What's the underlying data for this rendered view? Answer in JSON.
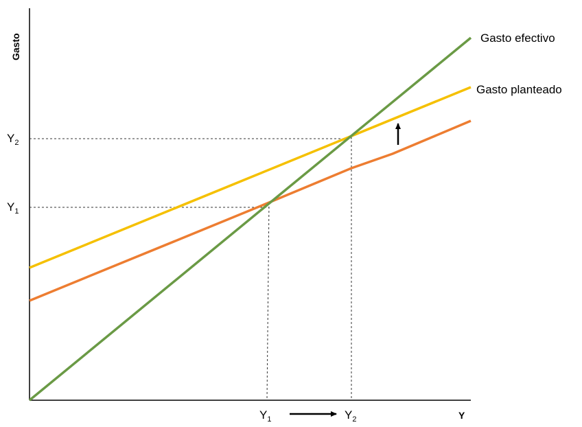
{
  "axes": {
    "y_label": "Gasto",
    "x_label": "Y"
  },
  "ticks": {
    "y_upper": {
      "base": "Y",
      "sub": "2"
    },
    "y_lower": {
      "base": "Y",
      "sub": "1"
    },
    "x_left": {
      "base": "Y",
      "sub": "1"
    },
    "x_right": {
      "base": "Y",
      "sub": "2"
    }
  },
  "lines": {
    "actual": {
      "label": "Gasto efectivo",
      "color": "#6a9a45"
    },
    "planned_new": {
      "label": "Gasto planteado",
      "color": "#f5c000"
    },
    "planned_old": {
      "label": "",
      "color": "#ed7d31"
    }
  },
  "arrows": {
    "shift_up": "up-arrow",
    "income_increase": "right-arrow"
  }
}
